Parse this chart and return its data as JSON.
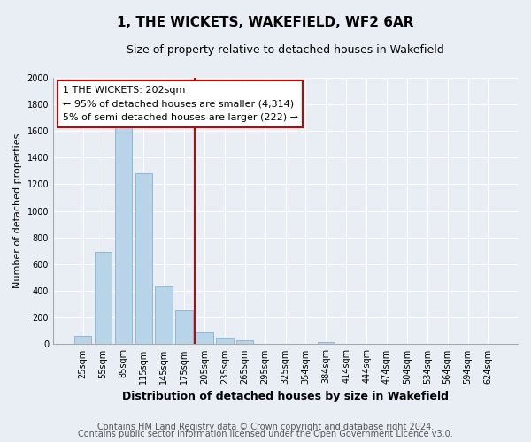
{
  "title": "1, THE WICKETS, WAKEFIELD, WF2 6AR",
  "subtitle": "Size of property relative to detached houses in Wakefield",
  "xlabel": "Distribution of detached houses by size in Wakefield",
  "ylabel": "Number of detached properties",
  "bar_labels": [
    "25sqm",
    "55sqm",
    "85sqm",
    "115sqm",
    "145sqm",
    "175sqm",
    "205sqm",
    "235sqm",
    "265sqm",
    "295sqm",
    "325sqm",
    "354sqm",
    "384sqm",
    "414sqm",
    "444sqm",
    "474sqm",
    "504sqm",
    "534sqm",
    "564sqm",
    "594sqm",
    "624sqm"
  ],
  "bar_values": [
    65,
    695,
    1635,
    1280,
    435,
    255,
    90,
    52,
    28,
    0,
    0,
    0,
    15,
    0,
    0,
    0,
    0,
    0,
    0,
    0,
    0
  ],
  "bar_color": "#b8d4e8",
  "bar_edge_color": "#8ab0cc",
  "vline_color": "#cc0000",
  "annotation_title": "1 THE WICKETS: 202sqm",
  "annotation_line1": "← 95% of detached houses are smaller (4,314)",
  "annotation_line2": "5% of semi-detached houses are larger (222) →",
  "annotation_box_facecolor": "#ffffff",
  "annotation_box_edgecolor": "#cc0000",
  "ylim": [
    0,
    2000
  ],
  "yticks": [
    0,
    200,
    400,
    600,
    800,
    1000,
    1200,
    1400,
    1600,
    1800,
    2000
  ],
  "footer1": "Contains HM Land Registry data © Crown copyright and database right 2024.",
  "footer2": "Contains public sector information licensed under the Open Government Licence v3.0.",
  "bg_color": "#e8eef4",
  "plot_bg_color": "#e8eef4",
  "grid_color": "#ffffff",
  "title_fontsize": 11,
  "subtitle_fontsize": 9,
  "xlabel_fontsize": 9,
  "ylabel_fontsize": 8,
  "tick_fontsize": 7,
  "annotation_fontsize": 8,
  "footer_fontsize": 7
}
